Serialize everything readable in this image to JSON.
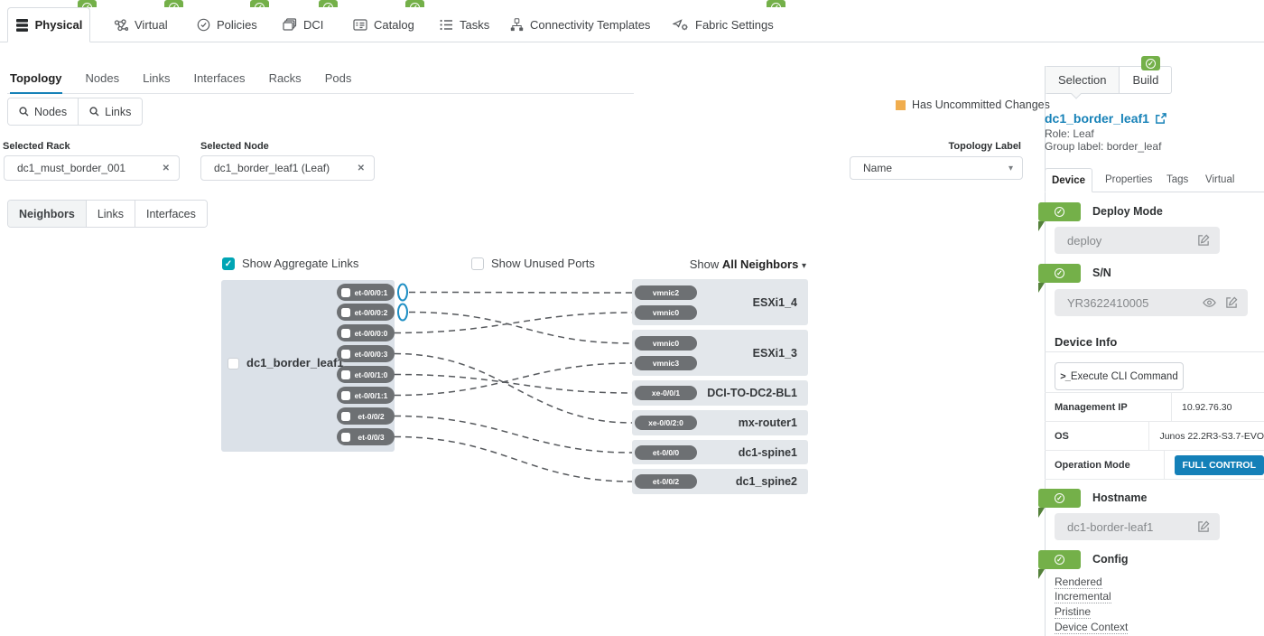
{
  "top_nav": {
    "tabs": [
      {
        "label": "Physical",
        "icon": "layers-icon",
        "badge": true,
        "active": true
      },
      {
        "label": "Virtual",
        "icon": "molecule-icon",
        "badge": true,
        "active": false
      },
      {
        "label": "Policies",
        "icon": "shield-check-icon",
        "badge": true,
        "active": false
      },
      {
        "label": "DCI",
        "icon": "stacked-windows-icon",
        "badge": true,
        "active": false
      },
      {
        "label": "Catalog",
        "icon": "card-list-icon",
        "badge": true,
        "active": false
      },
      {
        "label": "Tasks",
        "icon": "task-list-icon",
        "badge": false,
        "active": false
      },
      {
        "label": "Connectivity Templates",
        "icon": "hierarchy-icon",
        "badge": false,
        "active": false
      },
      {
        "label": "Fabric Settings",
        "icon": "send-gear-icon",
        "badge": true,
        "active": false
      }
    ]
  },
  "sub_nav": {
    "tabs": [
      "Topology",
      "Nodes",
      "Links",
      "Interfaces",
      "Racks",
      "Pods"
    ],
    "active": "Topology"
  },
  "toolbar": {
    "nodes_label": "Nodes",
    "links_label": "Links"
  },
  "status_bar": {
    "uncommitted_label": "Has Uncommitted Changes",
    "uncommitted_color": "#f0ad4e"
  },
  "filters": {
    "rack": {
      "label": "Selected Rack",
      "value": "dc1_must_border_001"
    },
    "node": {
      "label": "Selected Node",
      "value": "dc1_border_leaf1 (Leaf)"
    },
    "topology_label": {
      "label": "Topology Label",
      "value": "Name"
    }
  },
  "view_switch": {
    "tabs": [
      "Neighbors",
      "Links",
      "Interfaces"
    ],
    "active": "Neighbors"
  },
  "diagram": {
    "aggregate_links": {
      "label": "Show Aggregate Links",
      "checked": true
    },
    "unused_ports": {
      "label": "Show Unused Ports",
      "checked": false
    },
    "neighbors_filter": {
      "prefix": "Show ",
      "value": "All Neighbors"
    },
    "node": {
      "name": "dc1_border_leaf1",
      "ports": [
        "et-0/0/0:1",
        "et-0/0/0:2",
        "et-0/0/0:0",
        "et-0/0/0:3",
        "et-0/0/1:0",
        "et-0/0/1:1",
        "et-0/0/2",
        "et-0/0/3"
      ]
    },
    "aggregate_ports": [
      "et-0/0/0:1",
      "et-0/0/0:2"
    ],
    "neighbors": [
      {
        "name": "ESXi1_4",
        "ports": [
          "vmnic2",
          "vmnic0"
        ]
      },
      {
        "name": "ESXi1_3",
        "ports": [
          "vmnic0",
          "vmnic3"
        ]
      },
      {
        "name": "DCI-TO-DC2-BL1",
        "ports": [
          "xe-0/0/1"
        ]
      },
      {
        "name": "mx-router1",
        "ports": [
          "xe-0/0/2:0"
        ]
      },
      {
        "name": "dc1-spine1",
        "ports": [
          "et-0/0/0"
        ]
      },
      {
        "name": "dc1_spine2",
        "ports": [
          "et-0/0/2"
        ]
      }
    ],
    "links": [
      {
        "port": "et-0/0/0:1",
        "neighbor": "ESXi1_4",
        "neighbor_port": "vmnic2"
      },
      {
        "port": "et-0/0/0:2",
        "neighbor": "ESXi1_3",
        "neighbor_port": "vmnic0"
      },
      {
        "port": "et-0/0/0:0",
        "neighbor": "ESXi1_4",
        "neighbor_port": "vmnic0"
      },
      {
        "port": "et-0/0/0:3",
        "neighbor": "mx-router1",
        "neighbor_port": "xe-0/0/2:0"
      },
      {
        "port": "et-0/0/1:0",
        "neighbor": "DCI-TO-DC2-BL1",
        "neighbor_port": "xe-0/0/1"
      },
      {
        "port": "et-0/0/1:1",
        "neighbor": "ESXi1_3",
        "neighbor_port": "vmnic3"
      },
      {
        "port": "et-0/0/2",
        "neighbor": "dc1-spine1",
        "neighbor_port": "et-0/0/0"
      },
      {
        "port": "et-0/0/3",
        "neighbor": "dc1_spine2",
        "neighbor_port": "et-0/0/2"
      }
    ]
  },
  "panel": {
    "tabs": [
      "Selection",
      "Build"
    ],
    "active_tab": "Selection",
    "title": "dc1_border_leaf1",
    "role": "Role: Leaf",
    "group_label": "Group label: border_leaf",
    "detail_tabs": [
      "Device",
      "Properties",
      "Tags",
      "Virtual"
    ],
    "active_detail_tab": "Device",
    "deploy_mode": {
      "heading": "Deploy Mode",
      "value": "deploy"
    },
    "serial": {
      "heading": "S/N",
      "value": "YR3622410005"
    },
    "device_info": {
      "heading": "Device Info",
      "cli_button": "Execute CLI Command",
      "rows": [
        {
          "label": "Management IP",
          "value": "10.92.76.30"
        },
        {
          "label": "OS",
          "value": "Junos 22.2R3-S3.7-EVO"
        },
        {
          "label": "Operation Mode",
          "value": "FULL CONTROL"
        }
      ]
    },
    "hostname": {
      "heading": "Hostname",
      "value": "dc1-border-leaf1"
    },
    "config": {
      "heading": "Config",
      "links": [
        "Rendered",
        "Incremental",
        "Pristine",
        "Device Context"
      ]
    }
  },
  "colors": {
    "green": "#74b049",
    "blue": "#1782b8",
    "teal": "#00a5b4",
    "orange": "#f0ad4e"
  }
}
